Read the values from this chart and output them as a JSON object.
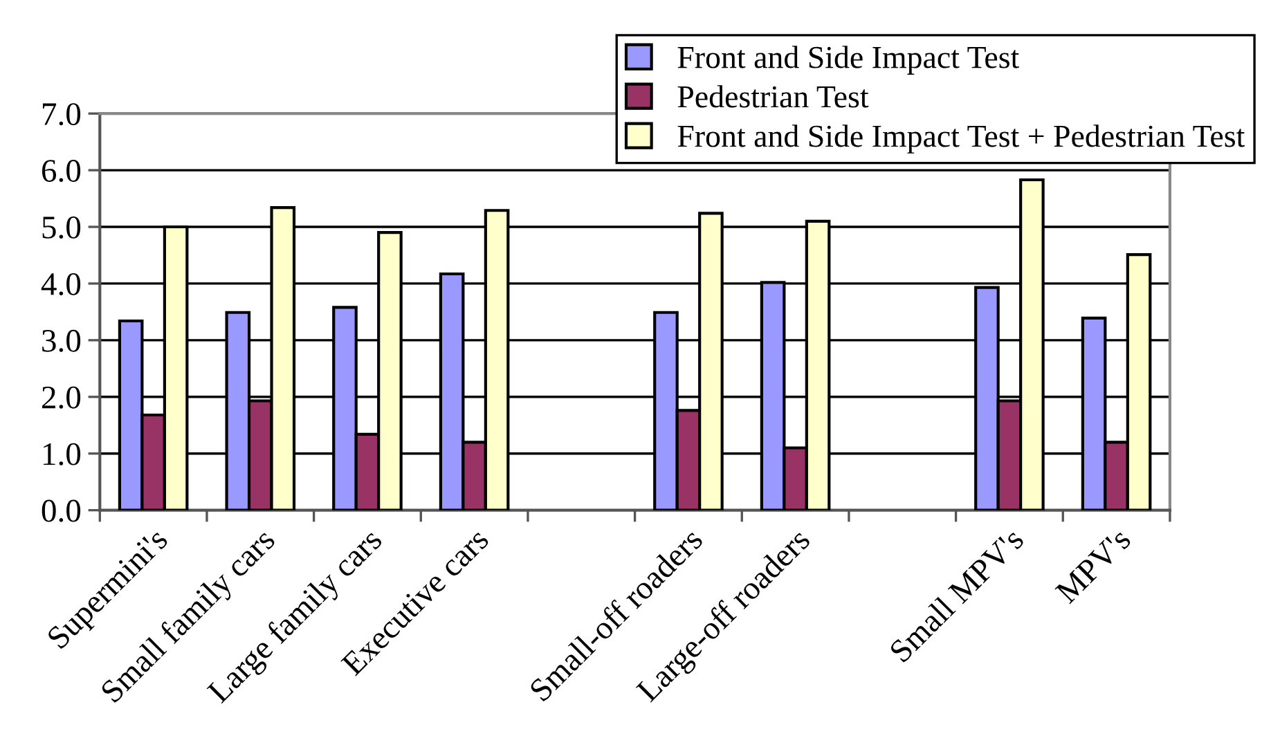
{
  "chart_data": {
    "type": "bar",
    "categories": [
      "Supermini's",
      "Small family cars",
      "Large family cars",
      "Executive cars",
      null,
      "Small-off roaders",
      "Large-off roaders",
      null,
      "Small MPV's",
      "MPV's"
    ],
    "series": [
      {
        "name": "Front and Side Impact Test",
        "color": "#9999ff",
        "values": [
          3.34,
          3.49,
          3.58,
          4.17,
          null,
          3.49,
          4.02,
          null,
          3.93,
          3.39
        ]
      },
      {
        "name": "Pedestrian Test",
        "color": "#993366",
        "values": [
          1.68,
          1.93,
          1.34,
          1.2,
          null,
          1.76,
          1.1,
          null,
          1.93,
          1.2
        ]
      },
      {
        "name": "Front and Side Impact Test + Pedestrian Test",
        "color": "#ffffcc",
        "values": [
          5.0,
          5.34,
          4.9,
          5.29,
          null,
          5.24,
          5.1,
          null,
          5.83,
          4.51
        ]
      }
    ],
    "ylim": [
      0,
      7
    ],
    "yticks": [
      {
        "value": 0,
        "label": "0.0"
      },
      {
        "value": 1,
        "label": "1.0"
      },
      {
        "value": 2,
        "label": "2.0"
      },
      {
        "value": 3,
        "label": "3.0"
      },
      {
        "value": 4,
        "label": "4.0"
      },
      {
        "value": 5,
        "label": "5.0"
      },
      {
        "value": 6,
        "label": "6.0"
      },
      {
        "value": 7,
        "label": "7.0"
      }
    ],
    "grid": "y",
    "legend": "top right"
  }
}
